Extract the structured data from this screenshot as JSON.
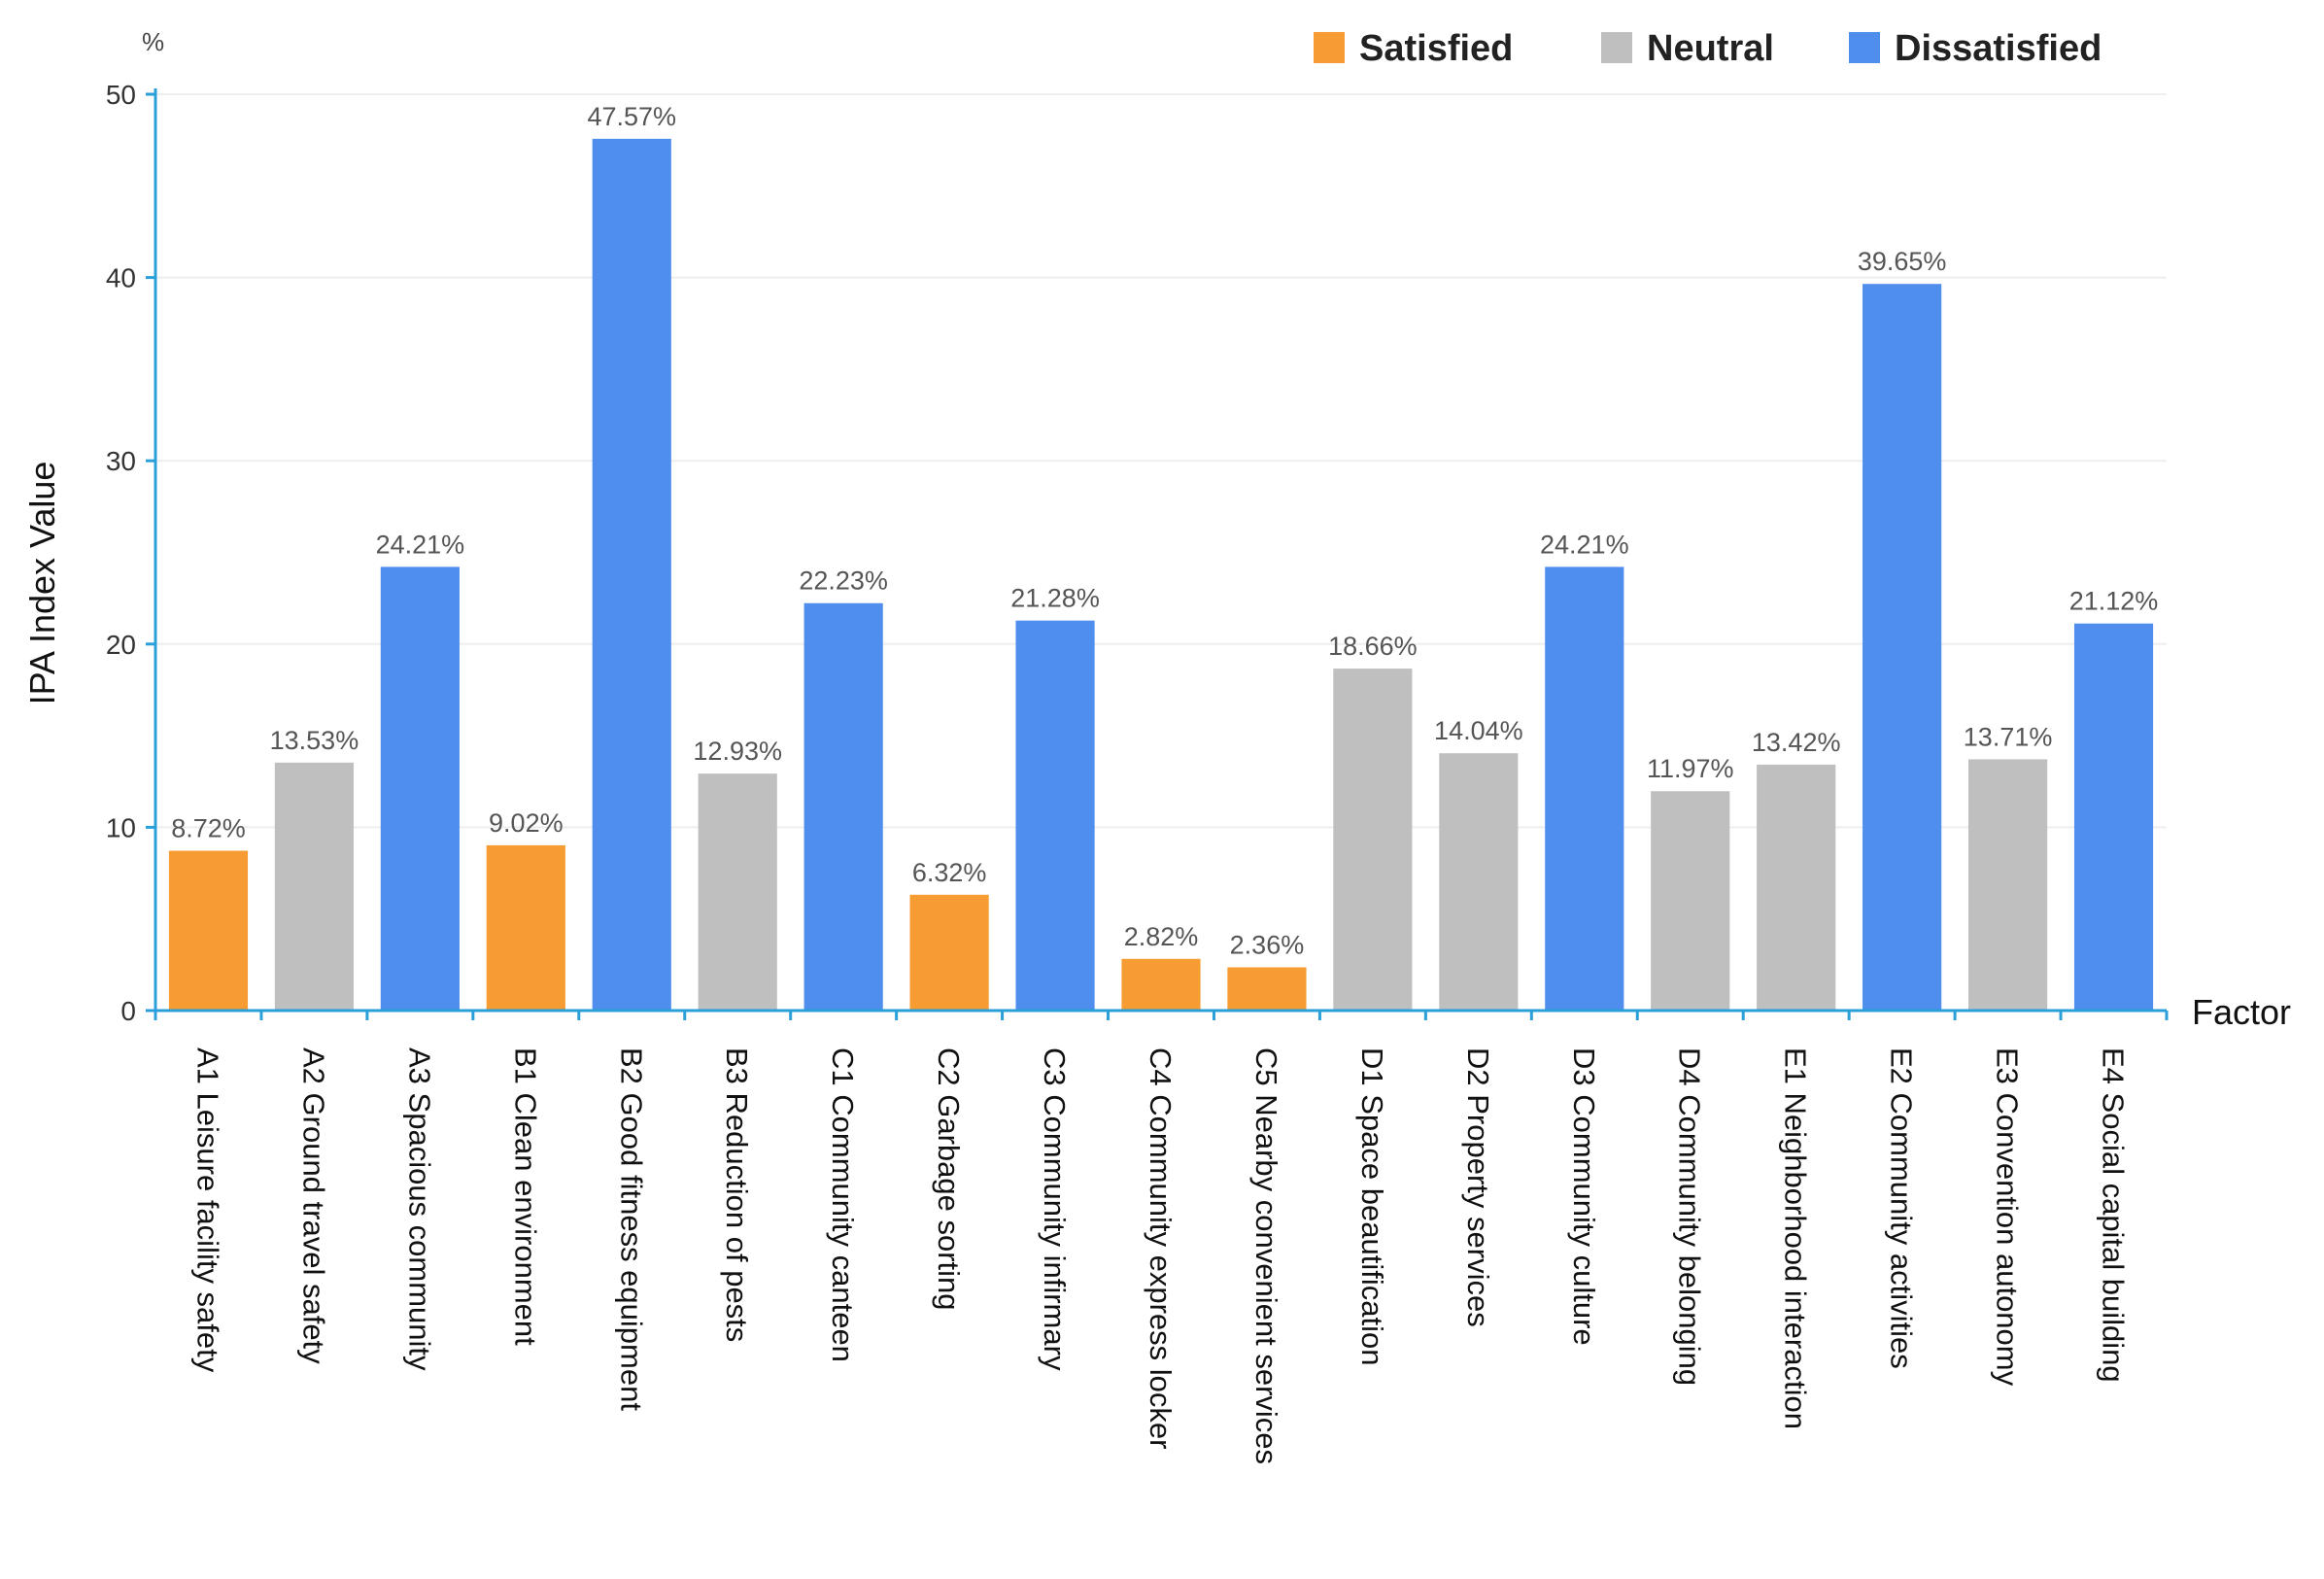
{
  "chart_data": {
    "type": "bar",
    "ylabel": "IPA Index Value",
    "y_unit": "%",
    "xlabel": "Factor",
    "ylim": [
      0,
      50
    ],
    "yticks": [
      0,
      10,
      20,
      30,
      40,
      50
    ],
    "grid": true,
    "legend_position": "top-right",
    "legend": [
      {
        "name": "Satisfied",
        "color": "#F79B33"
      },
      {
        "name": "Neutral",
        "color": "#BFBFBF"
      },
      {
        "name": "Dissatisfied",
        "color": "#4F8EEC"
      }
    ],
    "categories": [
      "A1 Leisure facility safety",
      "A2 Ground travel safety",
      "A3 Spacious community",
      "B1 Clean environment",
      "B2 Good fitness equipment",
      "B3 Reduction of pests",
      "C1 Community canteen",
      "C2 Garbage sorting",
      "C3 Community infirmary",
      "C4 Community express locker",
      "C5 Nearby convenient services",
      "D1 Space beautification",
      "D2 Property services",
      "D3 Community culture",
      "D4 Community belonging",
      "E1 Neighborhood interaction",
      "E2 Community activities",
      "E3 Convention autonomy",
      "E4 Social capital building"
    ],
    "values": [
      8.72,
      13.53,
      24.21,
      9.02,
      47.57,
      12.93,
      22.23,
      6.32,
      21.28,
      2.82,
      2.36,
      18.66,
      14.04,
      24.21,
      11.97,
      13.42,
      39.65,
      13.71,
      21.12
    ],
    "value_labels": [
      "8.72%",
      "13.53%",
      "24.21%",
      "9.02%",
      "47.57%",
      "12.93%",
      "22.23%",
      "6.32%",
      "21.28%",
      "2.82%",
      "2.36%",
      "18.66%",
      "14.04%",
      "24.21%",
      "11.97%",
      "13.42%",
      "39.65%",
      "13.71%",
      "21.12%"
    ],
    "groups": [
      "Satisfied",
      "Neutral",
      "Dissatisfied",
      "Satisfied",
      "Dissatisfied",
      "Neutral",
      "Dissatisfied",
      "Satisfied",
      "Dissatisfied",
      "Satisfied",
      "Satisfied",
      "Neutral",
      "Neutral",
      "Dissatisfied",
      "Neutral",
      "Neutral",
      "Dissatisfied",
      "Neutral",
      "Dissatisfied"
    ]
  }
}
